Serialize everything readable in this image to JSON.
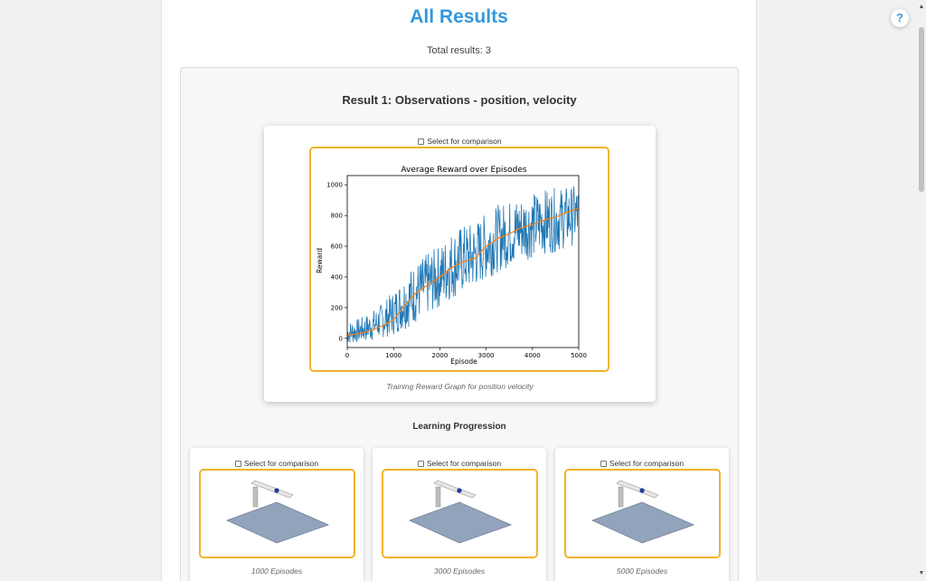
{
  "page": {
    "title": "All Results",
    "total_results": "Total results: 3"
  },
  "help": {
    "label": "?"
  },
  "result": {
    "heading": "Result 1: Observations - position, velocity",
    "select_label": "Select for comparison",
    "graph_caption": "Training Reward Graph for position velocity"
  },
  "progression": {
    "title": "Learning Progression",
    "snapshots": [
      {
        "select_label": "Select for comparison",
        "caption": "1000 Episodes"
      },
      {
        "select_label": "Select for comparison",
        "caption": "3000 Episodes"
      },
      {
        "select_label": "Select for comparison",
        "caption": "5000 Episodes"
      }
    ]
  },
  "chart_data": {
    "type": "line",
    "title": "Average Reward over Episodes",
    "xlabel": "Episode",
    "ylabel": "Reward",
    "xlim": [
      0,
      5000
    ],
    "ylim": [
      -60,
      1060
    ],
    "xticks": [
      0,
      1000,
      2000,
      3000,
      4000,
      5000
    ],
    "yticks": [
      0,
      200,
      400,
      600,
      800,
      1000
    ],
    "colors": {
      "raw": "#1f77b4",
      "average": "#ff7f0e"
    },
    "series": [
      {
        "role": "raw",
        "x": [
          0,
          250,
          500,
          750,
          1000,
          1250,
          1500,
          1750,
          2000,
          2250,
          2500,
          2750,
          3000,
          3250,
          3500,
          3750,
          4000,
          4250,
          4500,
          4750,
          5000
        ],
        "low": [
          -40,
          -30,
          -20,
          0,
          20,
          60,
          100,
          150,
          200,
          250,
          290,
          320,
          380,
          430,
          460,
          500,
          520,
          550,
          560,
          590,
          620
        ],
        "high": [
          110,
          130,
          170,
          230,
          310,
          420,
          500,
          560,
          610,
          700,
          740,
          760,
          820,
          870,
          900,
          930,
          950,
          970,
          980,
          990,
          1000
        ]
      },
      {
        "role": "average",
        "x": [
          0,
          250,
          500,
          750,
          1000,
          1250,
          1500,
          1750,
          2000,
          2250,
          2500,
          2750,
          3000,
          3250,
          3500,
          3750,
          4000,
          4250,
          4500,
          4750,
          5000
        ],
        "y": [
          20,
          30,
          50,
          80,
          120,
          220,
          300,
          350,
          400,
          460,
          500,
          520,
          600,
          650,
          680,
          720,
          740,
          770,
          790,
          820,
          850
        ]
      }
    ]
  }
}
